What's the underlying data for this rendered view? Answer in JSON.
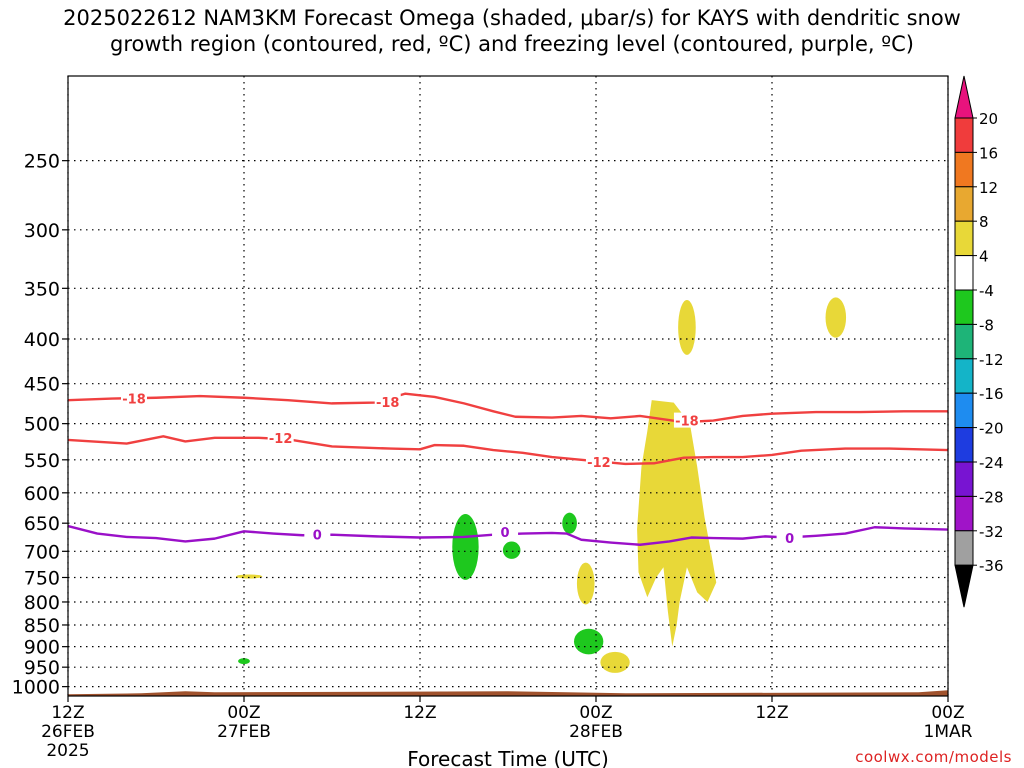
{
  "title": {
    "line1": "2025022612 NAM3KM Forecast Omega (shaded, μbar/s) for KAYS with dendritic snow",
    "line2": "growth region (contoured, red, ºC) and freezing level (contoured, purple, ºC)"
  },
  "credit": "coolwx.com/models",
  "chart_data": {
    "type": "contour",
    "xlabel": "Forecast Time (UTC)",
    "x_ticks": [
      {
        "hour": 0,
        "lines": [
          "12Z",
          "26FEB",
          "2025"
        ]
      },
      {
        "hour": 12,
        "lines": [
          "00Z",
          "27FEB"
        ]
      },
      {
        "hour": 24,
        "lines": [
          "12Z"
        ]
      },
      {
        "hour": 36,
        "lines": [
          "00Z",
          "28FEB"
        ]
      },
      {
        "hour": 48,
        "lines": [
          "12Z"
        ]
      },
      {
        "hour": 60,
        "lines": [
          "00Z",
          "1MAR"
        ]
      }
    ],
    "xlim_hours": [
      0,
      60
    ],
    "ylabel": "",
    "y_ticks": [
      250,
      300,
      350,
      400,
      450,
      500,
      550,
      600,
      650,
      700,
      750,
      800,
      850,
      900,
      950,
      1000
    ],
    "ylim_hPa": [
      1025,
      200
    ],
    "y_scale": "log",
    "grid": true,
    "ground_level_hPa": 1015,
    "ground_color": "#a0522d",
    "colorbar": {
      "levels": [
        20,
        16,
        12,
        8,
        4,
        -4,
        -8,
        -12,
        -16,
        -20,
        -24,
        -28,
        -32,
        -36
      ],
      "colors": [
        "#e8137d",
        "#f03c3c",
        "#f07820",
        "#e8a830",
        "#e8d838",
        "#ffffff",
        "#1ec81e",
        "#1eb478",
        "#14b4c8",
        "#1e8cf0",
        "#1e3ce0",
        "#7814d2",
        "#a014c8",
        "#a0a0a0",
        "#000000"
      ]
    },
    "series": [
      {
        "name": "-18",
        "color": "#f04040",
        "contour_labels": [
          {
            "hour": 4.5,
            "hPa": 468
          },
          {
            "hour": 21.8,
            "hPa": 472
          },
          {
            "hour": 42.2,
            "hPa": 496
          }
        ],
        "points": [
          [
            0,
            470
          ],
          [
            3,
            468
          ],
          [
            6,
            467
          ],
          [
            9,
            465
          ],
          [
            12,
            467
          ],
          [
            15,
            470
          ],
          [
            18,
            474
          ],
          [
            21,
            473
          ],
          [
            23,
            462
          ],
          [
            25,
            466
          ],
          [
            27,
            474
          ],
          [
            29,
            484
          ],
          [
            30.5,
            491
          ],
          [
            33,
            492
          ],
          [
            35,
            490
          ],
          [
            37,
            493
          ],
          [
            39,
            490
          ],
          [
            40.5,
            494
          ],
          [
            42,
            498
          ],
          [
            44,
            496
          ],
          [
            46,
            490
          ],
          [
            48,
            487
          ],
          [
            51,
            485
          ],
          [
            54,
            485
          ],
          [
            57,
            484
          ],
          [
            60,
            484
          ]
        ]
      },
      {
        "name": "-12",
        "color": "#f04040",
        "contour_labels": [
          {
            "hour": 14.5,
            "hPa": 519
          },
          {
            "hour": 36.2,
            "hPa": 553
          }
        ],
        "points": [
          [
            0,
            522
          ],
          [
            4,
            527
          ],
          [
            6.5,
            517
          ],
          [
            8,
            524
          ],
          [
            10,
            519
          ],
          [
            13,
            519
          ],
          [
            15,
            521
          ],
          [
            18,
            531
          ],
          [
            22,
            534
          ],
          [
            24,
            535
          ],
          [
            25,
            529
          ],
          [
            27,
            530
          ],
          [
            29,
            536
          ],
          [
            31,
            540
          ],
          [
            33,
            546
          ],
          [
            36,
            552
          ],
          [
            38,
            556
          ],
          [
            40,
            555
          ],
          [
            42,
            547
          ],
          [
            44,
            546
          ],
          [
            46,
            546
          ],
          [
            48,
            543
          ],
          [
            50,
            537
          ],
          [
            53,
            534
          ],
          [
            56,
            534
          ],
          [
            60,
            536
          ]
        ]
      },
      {
        "name": "0",
        "color": "#9a10c8",
        "contour_labels": [
          {
            "hour": 17,
            "hPa": 670
          },
          {
            "hour": 29.8,
            "hPa": 665
          },
          {
            "hour": 49.2,
            "hPa": 676
          }
        ],
        "points": [
          [
            0,
            655
          ],
          [
            2,
            668
          ],
          [
            4,
            674
          ],
          [
            6,
            676
          ],
          [
            8,
            682
          ],
          [
            10,
            677
          ],
          [
            12,
            664
          ],
          [
            14,
            668
          ],
          [
            16,
            671
          ],
          [
            18,
            670
          ],
          [
            21,
            673
          ],
          [
            24,
            675
          ],
          [
            27,
            674
          ],
          [
            29,
            670
          ],
          [
            31,
            668
          ],
          [
            33,
            667
          ],
          [
            34,
            668
          ],
          [
            35,
            679
          ],
          [
            37,
            684
          ],
          [
            39,
            688
          ],
          [
            41,
            682
          ],
          [
            42.5,
            675
          ],
          [
            44,
            676
          ],
          [
            46,
            677
          ],
          [
            47.5,
            673
          ],
          [
            49,
            675
          ],
          [
            51,
            672
          ],
          [
            53,
            668
          ],
          [
            55,
            657
          ],
          [
            57,
            659
          ],
          [
            60,
            661
          ]
        ]
      }
    ]
  }
}
